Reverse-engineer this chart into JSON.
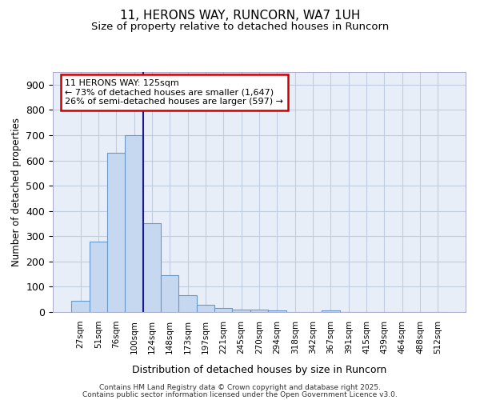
{
  "title": "11, HERONS WAY, RUNCORN, WA7 1UH",
  "subtitle": "Size of property relative to detached houses in Runcorn",
  "xlabel": "Distribution of detached houses by size in Runcorn",
  "ylabel": "Number of detached properties",
  "categories": [
    "27sqm",
    "51sqm",
    "76sqm",
    "100sqm",
    "124sqm",
    "148sqm",
    "173sqm",
    "197sqm",
    "221sqm",
    "245sqm",
    "270sqm",
    "294sqm",
    "318sqm",
    "342sqm",
    "367sqm",
    "391sqm",
    "415sqm",
    "439sqm",
    "464sqm",
    "488sqm",
    "512sqm"
  ],
  "values": [
    45,
    280,
    630,
    700,
    350,
    145,
    65,
    30,
    15,
    10,
    10,
    7,
    0,
    0,
    5,
    0,
    0,
    0,
    0,
    0,
    0
  ],
  "bar_color": "#c5d8f0",
  "bar_edge_color": "#6699cc",
  "vline_x": 4,
  "vline_color": "#1a1a8c",
  "annotation_title": "11 HERONS WAY: 125sqm",
  "annotation_line1": "← 73% of detached houses are smaller (1,647)",
  "annotation_line2": "26% of semi-detached houses are larger (597) →",
  "annotation_box_color": "#ffffff",
  "annotation_border_color": "#cc0000",
  "footer_line1": "Contains HM Land Registry data © Crown copyright and database right 2025.",
  "footer_line2": "Contains public sector information licensed under the Open Government Licence v3.0.",
  "bg_color": "#e8eef8",
  "grid_color": "#c0cce0",
  "ylim": [
    0,
    950
  ],
  "yticks": [
    0,
    100,
    200,
    300,
    400,
    500,
    600,
    700,
    800,
    900
  ]
}
